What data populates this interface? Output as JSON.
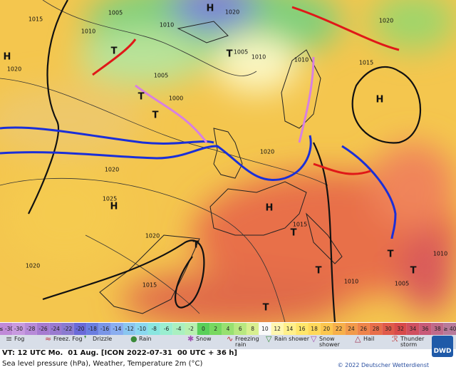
{
  "map": {
    "labels": [
      "H",
      "H",
      "H",
      "H",
      "H",
      "T",
      "T",
      "T",
      "T",
      "T",
      "T",
      "T",
      "T",
      "T",
      "T",
      "1015",
      "1010",
      "1005",
      "1010",
      "1020",
      "1005",
      "1010",
      "1005",
      "1000",
      "1020",
      "1020",
      "1025",
      "1020",
      "1020",
      "1015",
      "1015",
      "1010",
      "1005",
      "1020",
      "1010",
      "1015",
      "1020",
      "1010"
    ]
  },
  "temperature_scale": {
    "values": [
      "≤ -30",
      -30,
      -28,
      -26,
      -24,
      -22,
      -20,
      -18,
      -16,
      -14,
      -12,
      -10,
      -8,
      -6,
      -4,
      -2,
      0,
      2,
      4,
      6,
      8,
      10,
      12,
      14,
      16,
      18,
      20,
      22,
      24,
      26,
      28,
      30,
      32,
      34,
      36,
      38,
      "≥ 40"
    ]
  },
  "legend": [
    "Fog",
    "Freez. Fog",
    "Drizzle",
    "Rain",
    "Snow",
    "Freezing rain",
    "Rain shower",
    "Snow shower",
    "Hail",
    "Thunder storm"
  ],
  "logo": "DWD",
  "footer": {
    "valid_time": "VT: 12 UTC Mo.  01 Aug. [ICON 2022-07-31  00 UTC + 36 h]",
    "description": "Sea level pressure (hPa), Weather, Temperature 2m (°C)",
    "copyright": "© 2022 Deutscher Wetterdienst"
  }
}
